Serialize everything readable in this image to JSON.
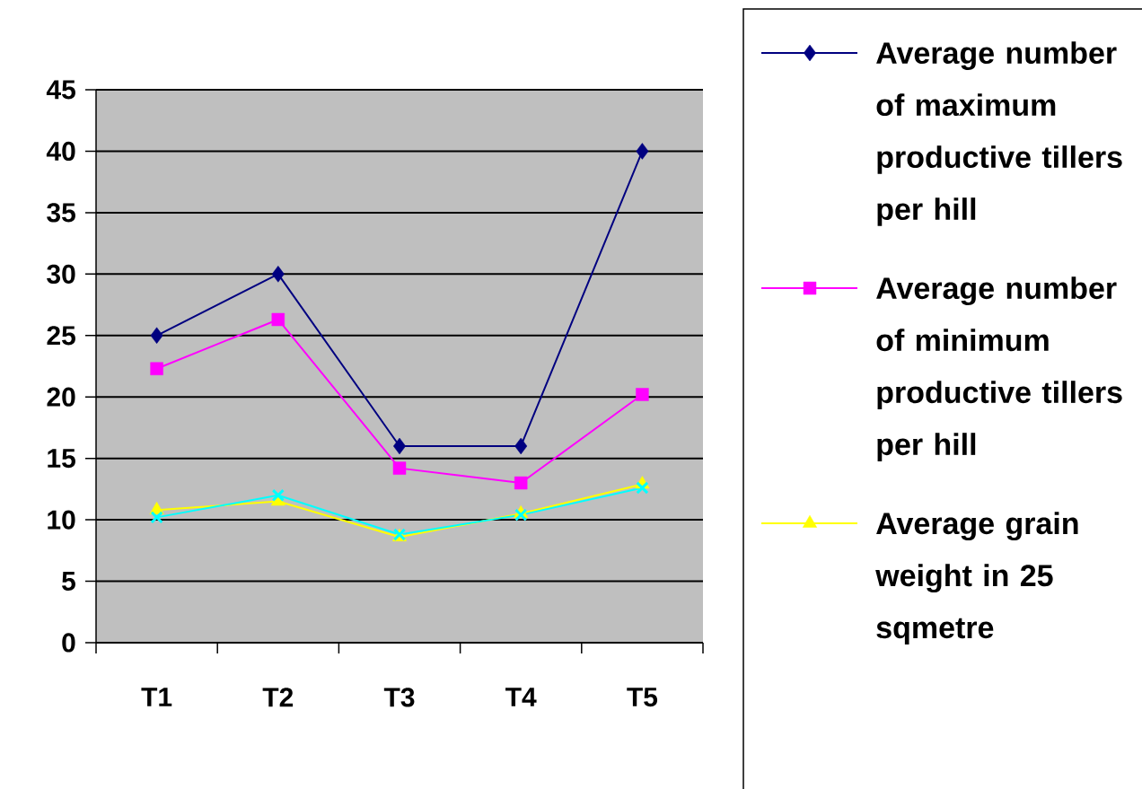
{
  "chart_data": {
    "type": "line",
    "categories": [
      "T1",
      "T2",
      "T3",
      "T4",
      "T5"
    ],
    "series": [
      {
        "name": "Average number of maximum productive tillers per hill",
        "color": "#000080",
        "marker": "diamond",
        "values": [
          25,
          30,
          16,
          16,
          40
        ]
      },
      {
        "name": "Average number of minimum productive tillers per hill",
        "color": "#ff00ff",
        "marker": "square",
        "values": [
          22.3,
          26.3,
          14.2,
          13,
          20.2
        ]
      },
      {
        "name": "Average grain weight in 25 sqmetre",
        "color": "#ffff00",
        "marker": "triangle",
        "values": [
          10.8,
          11.5,
          8.6,
          10.5,
          12.9
        ]
      },
      {
        "color": "#00ffff",
        "marker": "cross",
        "values": [
          10.2,
          12.0,
          8.8,
          10.4,
          12.6
        ]
      }
    ],
    "ylim": [
      0,
      45
    ],
    "yticks": [
      0,
      5,
      10,
      15,
      20,
      25,
      30,
      35,
      40,
      45
    ],
    "grid": "y",
    "legend": "right"
  }
}
